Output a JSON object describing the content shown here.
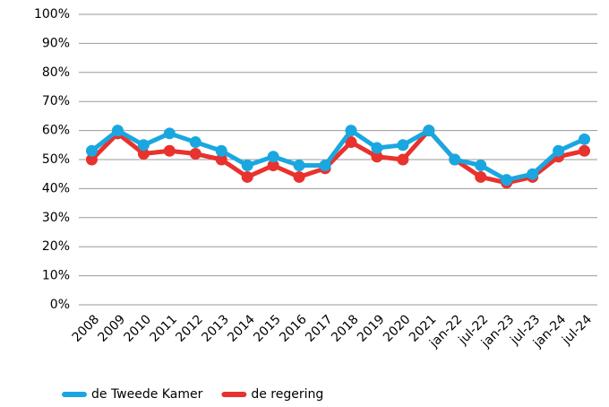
{
  "chart_data": {
    "type": "line",
    "categories": [
      "2008",
      "2009",
      "2010",
      "2011",
      "2012",
      "2013",
      "2014",
      "2015",
      "2016",
      "2017",
      "2018",
      "2019",
      "2020",
      "2021",
      "jan-22",
      "jul-22",
      "jan-23",
      "jul-23",
      "jan-24",
      "jul-24"
    ],
    "series": [
      {
        "name": "de Tweede Kamer",
        "color": "#1aa7e0",
        "values": [
          53,
          60,
          55,
          59,
          56,
          53,
          48,
          51,
          48,
          48,
          60,
          54,
          55,
          60,
          50,
          48,
          43,
          45,
          53,
          57
        ]
      },
      {
        "name": "de regering",
        "color": "#e8322e",
        "values": [
          50,
          59,
          52,
          53,
          52,
          50,
          44,
          48,
          44,
          47,
          56,
          51,
          50,
          60,
          50,
          44,
          42,
          44,
          51,
          53
        ]
      }
    ],
    "ylim": [
      0,
      100
    ],
    "yticks": [
      {
        "value": 0,
        "label": "0%"
      },
      {
        "value": 10,
        "label": "10%"
      },
      {
        "value": 20,
        "label": "20%"
      },
      {
        "value": 30,
        "label": "30%"
      },
      {
        "value": 40,
        "label": "40%"
      },
      {
        "value": 50,
        "label": "50%"
      },
      {
        "value": 60,
        "label": "60%"
      },
      {
        "value": 70,
        "label": "70%"
      },
      {
        "value": 80,
        "label": "80%"
      },
      {
        "value": 90,
        "label": "90%"
      },
      {
        "value": 100,
        "label": "100%"
      }
    ],
    "grid": true
  }
}
